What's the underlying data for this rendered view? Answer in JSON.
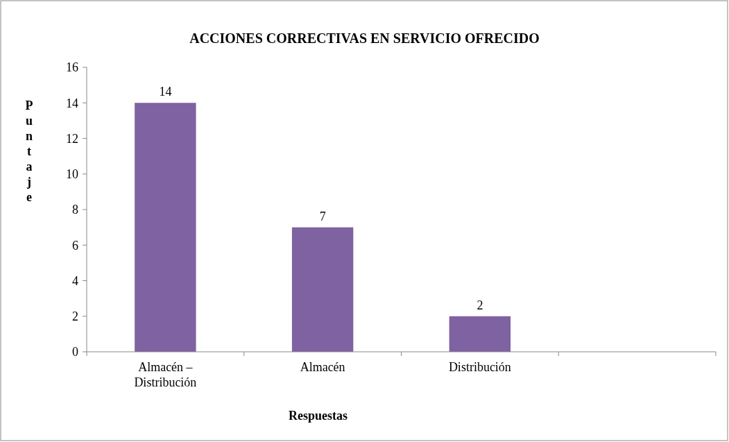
{
  "chart_data": {
    "type": "bar",
    "title": "ACCIONES CORRECTIVAS EN SERVICIO OFRECIDO",
    "xlabel": "Respuestas",
    "ylabel": "Puntaje",
    "categories": [
      "Almacén – Distribución",
      "Almacén",
      "Distribución",
      null
    ],
    "values": [
      14,
      7,
      2,
      null
    ],
    "color": "#7f62a1",
    "ylim": [
      0,
      16
    ],
    "yticks": [
      0,
      2,
      4,
      6,
      8,
      10,
      12,
      14,
      16
    ],
    "data_labels": true
  }
}
